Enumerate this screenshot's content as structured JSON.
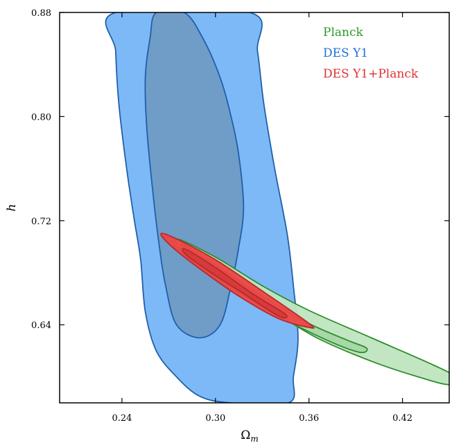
{
  "chart_data": {
    "type": "contour",
    "xlabel": "Ω",
    "xlabel_sub": "m",
    "ylabel": "h",
    "xlim": [
      0.2,
      0.45
    ],
    "ylim": [
      0.58,
      0.88
    ],
    "xticks": [
      0.24,
      0.3,
      0.36,
      0.42
    ],
    "xtick_labels": [
      "0.24",
      "0.30",
      "0.36",
      "0.42"
    ],
    "yticks": [
      0.64,
      0.72,
      0.8,
      0.88
    ],
    "ytick_labels": [
      "0.64",
      "0.72",
      "0.80",
      "0.88"
    ],
    "legend_position": "top-right",
    "series": [
      {
        "name": "DES Y1",
        "color": "#1e6fd9",
        "fill_outer": "#76b5f5",
        "fill_inner": "#6f9dc8",
        "line": "#1f5fa8",
        "contour_68": [
          [
            0.262,
            0.88
          ],
          [
            0.28,
            0.88
          ],
          [
            0.292,
            0.86
          ],
          [
            0.303,
            0.83
          ],
          [
            0.31,
            0.8
          ],
          [
            0.315,
            0.77
          ],
          [
            0.318,
            0.73
          ],
          [
            0.315,
            0.7
          ],
          [
            0.31,
            0.67
          ],
          [
            0.303,
            0.64
          ],
          [
            0.29,
            0.63
          ],
          [
            0.275,
            0.64
          ],
          [
            0.268,
            0.67
          ],
          [
            0.264,
            0.7
          ],
          [
            0.26,
            0.74
          ],
          [
            0.256,
            0.79
          ],
          [
            0.255,
            0.83
          ],
          [
            0.258,
            0.86
          ]
        ],
        "contour_95": [
          [
            0.236,
            0.88
          ],
          [
            0.322,
            0.88
          ],
          [
            0.327,
            0.85
          ],
          [
            0.331,
            0.81
          ],
          [
            0.338,
            0.76
          ],
          [
            0.346,
            0.71
          ],
          [
            0.35,
            0.67
          ],
          [
            0.353,
            0.63
          ],
          [
            0.35,
            0.6
          ],
          [
            0.347,
            0.58
          ],
          [
            0.31,
            0.58
          ],
          [
            0.29,
            0.585
          ],
          [
            0.275,
            0.6
          ],
          [
            0.262,
            0.62
          ],
          [
            0.255,
            0.65
          ],
          [
            0.252,
            0.69
          ],
          [
            0.248,
            0.72
          ],
          [
            0.243,
            0.76
          ],
          [
            0.238,
            0.81
          ],
          [
            0.236,
            0.85
          ]
        ]
      },
      {
        "name": "Planck",
        "color": "#2e9a2e",
        "fill_outer": "#bfe5bf",
        "fill_inner": "#a7d8a7",
        "line": "#2e8b2e",
        "contour_68": [
          [
            0.28,
            0.701
          ],
          [
            0.3,
            0.686
          ],
          [
            0.33,
            0.662
          ],
          [
            0.36,
            0.641
          ],
          [
            0.385,
            0.628
          ],
          [
            0.397,
            0.622
          ],
          [
            0.392,
            0.619
          ],
          [
            0.37,
            0.629
          ],
          [
            0.34,
            0.647
          ],
          [
            0.315,
            0.665
          ],
          [
            0.295,
            0.681
          ],
          [
            0.28,
            0.697
          ]
        ],
        "contour_95": [
          [
            0.275,
            0.706
          ],
          [
            0.3,
            0.692
          ],
          [
            0.33,
            0.67
          ],
          [
            0.36,
            0.651
          ],
          [
            0.4,
            0.63
          ],
          [
            0.44,
            0.609
          ],
          [
            0.452,
            0.601
          ],
          [
            0.45,
            0.594
          ],
          [
            0.43,
            0.6
          ],
          [
            0.4,
            0.612
          ],
          [
            0.365,
            0.63
          ],
          [
            0.335,
            0.652
          ],
          [
            0.305,
            0.675
          ],
          [
            0.282,
            0.693
          ]
        ]
      },
      {
        "name": "DES Y1+Planck",
        "color": "#e03030",
        "fill_outer": "#ee4444",
        "fill_inner": "#d63a3a",
        "line": "#b52a2a",
        "contour_68": [
          [
            0.281,
            0.698
          ],
          [
            0.3,
            0.684
          ],
          [
            0.325,
            0.663
          ],
          [
            0.345,
            0.648
          ],
          [
            0.34,
            0.647
          ],
          [
            0.318,
            0.664
          ],
          [
            0.296,
            0.681
          ],
          [
            0.281,
            0.694
          ]
        ],
        "contour_95": [
          [
            0.265,
            0.71
          ],
          [
            0.275,
            0.706
          ],
          [
            0.3,
            0.69
          ],
          [
            0.33,
            0.666
          ],
          [
            0.36,
            0.641
          ],
          [
            0.36,
            0.638
          ],
          [
            0.34,
            0.645
          ],
          [
            0.315,
            0.662
          ],
          [
            0.29,
            0.683
          ],
          [
            0.272,
            0.7
          ]
        ]
      }
    ]
  }
}
